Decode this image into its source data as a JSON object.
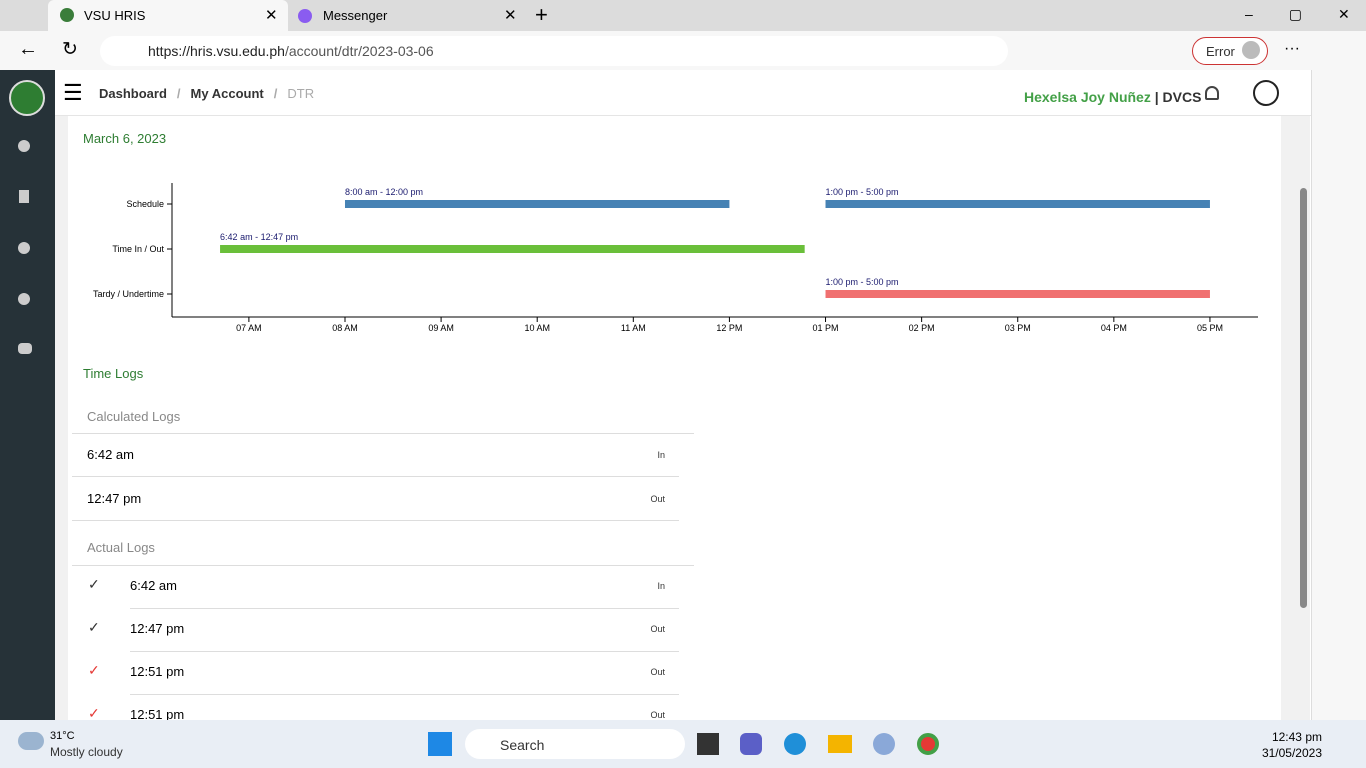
{
  "browser": {
    "tabs": [
      "VSU HRIS",
      "Messenger"
    ],
    "url_host": "https://hris.vsu.edu.ph",
    "url_path": "/account/dtr/2023-03-06",
    "error": "Error"
  },
  "header": {
    "breadcrumb": [
      "Dashboard",
      "My Account",
      "DTR"
    ],
    "user": "Hexelsa Joy Nuñez",
    "separator": "|",
    "dept": "DVCS"
  },
  "date_title": "March 6, 2023",
  "timeline": {
    "type": "timeline",
    "categories": [
      "Schedule",
      "Time In / Out",
      "Tardy / Undertime"
    ],
    "xlim": [
      6.2,
      17.5
    ],
    "xticks": [
      {
        "value": 7,
        "label": "07 AM"
      },
      {
        "value": 8,
        "label": "08 AM"
      },
      {
        "value": 9,
        "label": "09 AM"
      },
      {
        "value": 10,
        "label": "10 AM"
      },
      {
        "value": 11,
        "label": "11 AM"
      },
      {
        "value": 12,
        "label": "12 PM"
      },
      {
        "value": 13,
        "label": "01 PM"
      },
      {
        "value": 14,
        "label": "02 PM"
      },
      {
        "value": 15,
        "label": "03 PM"
      },
      {
        "value": 16,
        "label": "04 PM"
      },
      {
        "value": 17,
        "label": "05 PM"
      }
    ],
    "bars": [
      {
        "row": 0,
        "start": 8,
        "end": 12,
        "label": "8:00 am - 12:00 pm",
        "color": "#4682b4"
      },
      {
        "row": 0,
        "start": 13,
        "end": 17,
        "label": "1:00 pm - 5:00 pm",
        "color": "#4682b4"
      },
      {
        "row": 1,
        "start": 6.7,
        "end": 12.783,
        "label": "6:42 am - 12:47 pm",
        "color": "#6abf3a"
      },
      {
        "row": 2,
        "start": 13,
        "end": 17,
        "label": "1:00 pm - 5:00 pm",
        "color": "#f07070"
      }
    ]
  },
  "time_logs": {
    "title": "Time Logs",
    "calculated": {
      "title": "Calculated Logs",
      "rows": [
        [
          "6:42 am",
          "In"
        ],
        [
          "12:47 pm",
          "Out"
        ]
      ]
    },
    "actual": {
      "title": "Actual Logs",
      "rows": [
        [
          "6:42 am",
          "In"
        ],
        [
          "12:47 pm",
          "Out"
        ],
        [
          "12:51 pm",
          "Out"
        ],
        [
          "12:51 pm",
          "Out"
        ]
      ]
    }
  },
  "taskbar": {
    "temp": "31°C",
    "weather": "Mostly cloudy",
    "search": "Search",
    "time": "12:43 pm",
    "date": "31/05/2023"
  }
}
